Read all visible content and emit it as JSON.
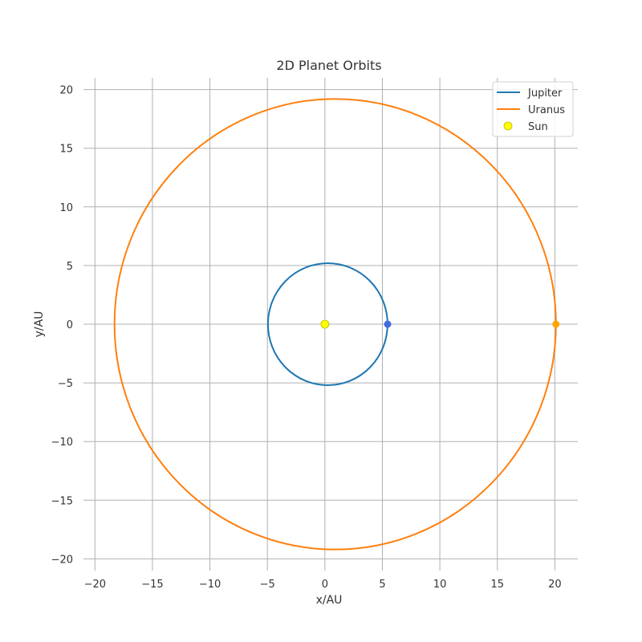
{
  "chart_data": {
    "type": "line",
    "title": "2D Planet Orbits",
    "xlabel": "x/AU",
    "ylabel": "y/AU",
    "xlim": [
      -21,
      22
    ],
    "ylim": [
      -21,
      21
    ],
    "xticks": [
      -20,
      -15,
      -10,
      -5,
      0,
      5,
      10,
      15,
      20
    ],
    "yticks": [
      -20,
      -15,
      -10,
      -5,
      0,
      5,
      10,
      15,
      20
    ],
    "xtick_labels": [
      "−20",
      "−15",
      "−10",
      "−5",
      "0",
      "5",
      "10",
      "15",
      "20"
    ],
    "ytick_labels": [
      "−20",
      "−15",
      "−10",
      "−5",
      "0",
      "5",
      "10",
      "15",
      "20"
    ],
    "grid": true,
    "legend_position": "top-right",
    "series": [
      {
        "name": "Jupiter",
        "kind": "orbit",
        "color": "#1f77b4",
        "center": [
          0.25,
          0
        ],
        "semi_major": 5.2,
        "semi_minor": 5.2,
        "marker": [
          5.46,
          0
        ],
        "marker_color": "#4169e1"
      },
      {
        "name": "Uranus",
        "kind": "orbit",
        "color": "#ff7f0e",
        "center": [
          0.9,
          0
        ],
        "semi_major": 19.2,
        "semi_minor": 19.2,
        "marker": [
          20.1,
          0
        ],
        "marker_color": "#ffa500"
      },
      {
        "name": "Sun",
        "kind": "point",
        "color": "#ffff00",
        "edge": "#b8b800",
        "x": 0,
        "y": 0
      }
    ]
  }
}
